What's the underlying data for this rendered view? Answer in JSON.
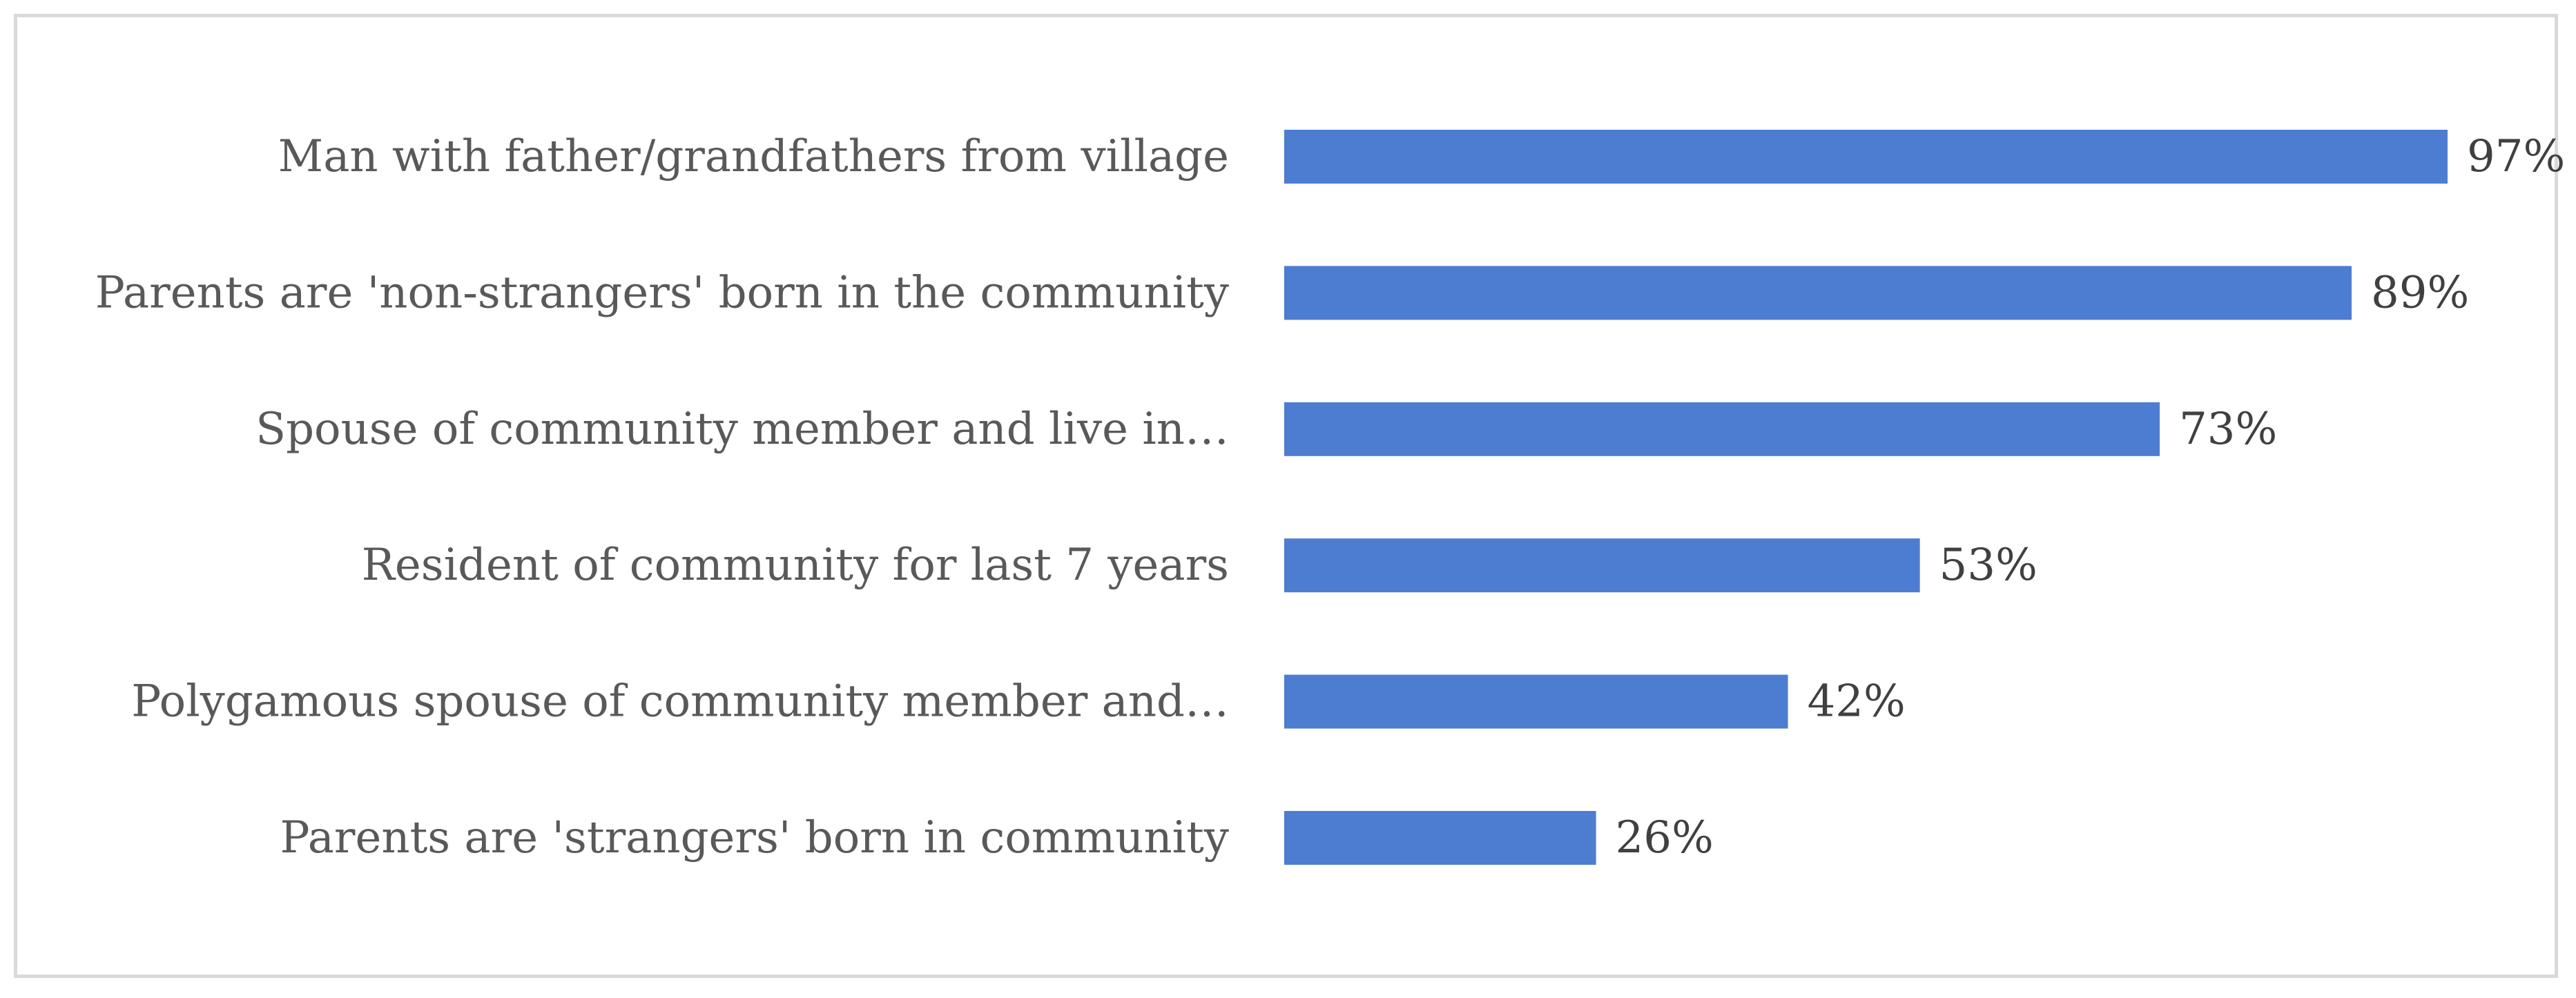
{
  "chart_data": {
    "type": "bar",
    "orientation": "horizontal",
    "categories": [
      "Man with father/grandfathers from village",
      "Parents are 'non-strangers' born in the community",
      "Spouse of community member and live in…",
      "Resident of community for last 7 years",
      "Polygamous spouse of community member and…",
      "Parents are 'strangers' born in community"
    ],
    "values": [
      97,
      89,
      73,
      53,
      42,
      26
    ],
    "value_labels": [
      "97%",
      "89%",
      "73%",
      "53%",
      "42%",
      "26%"
    ],
    "unit": "%",
    "xlim": [
      0,
      100
    ],
    "grid": false,
    "legend": false,
    "bar_color": "#4d7dd1"
  }
}
